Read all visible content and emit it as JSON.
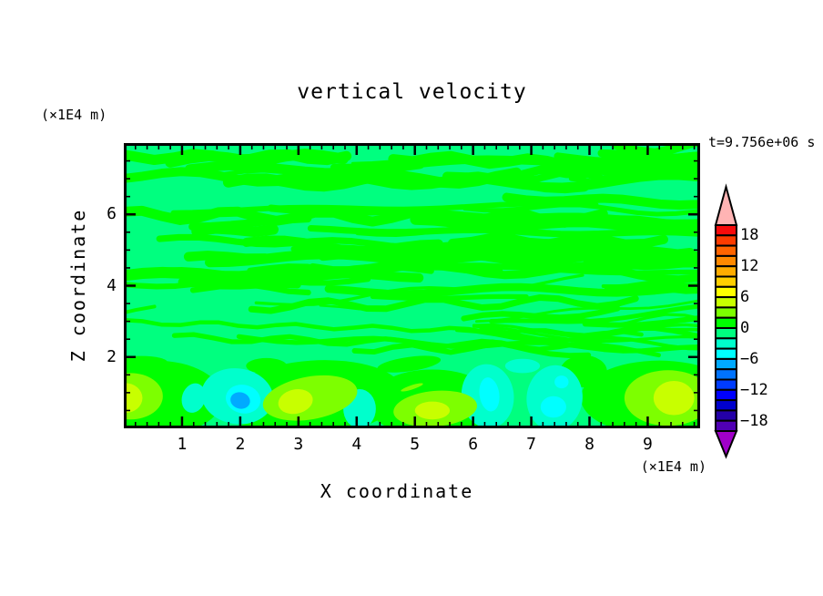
{
  "chart_data": {
    "type": "filled-contour",
    "title": "vertical velocity",
    "xlabel": "X coordinate",
    "ylabel": "Z coordinate",
    "x_unit": "(×1E4 m)",
    "y_unit": "(×1E4 m)",
    "timestamp": "t=9.756e+06 s",
    "xlim": [
      0,
      9.9
    ],
    "ylim": [
      0,
      8
    ],
    "x_major_ticks": [
      1,
      2,
      3,
      4,
      5,
      6,
      7,
      8,
      9
    ],
    "x_minor_step": 0.2,
    "y_major_ticks": [
      2,
      4,
      6
    ],
    "y_minor_step": 0.5,
    "grid": false,
    "colorbar": {
      "position": "right",
      "range": [
        -20,
        20
      ],
      "segment_span": 2,
      "labels": [
        "18",
        "12",
        "6",
        "0",
        "−6",
        "−12",
        "−18"
      ],
      "label_values": [
        18,
        12,
        6,
        0,
        -6,
        -12,
        -18
      ],
      "colors_top_to_bottom": [
        "#f80b0b",
        "#fd3b00",
        "#ff6400",
        "#ff8900",
        "#ffac00",
        "#ffcf00",
        "#ffff00",
        "#c8ff00",
        "#7dff00",
        "#00ff00",
        "#00ff7f",
        "#00ffcc",
        "#00ffff",
        "#00aaff",
        "#0073ff",
        "#003cff",
        "#0000ff",
        "#0000cd",
        "#2400a8",
        "#5000b4"
      ],
      "arrow_top_color": "#ffb4b4",
      "arrow_bottom_color": "#a000c8"
    },
    "field": {
      "description": "Mostly near-zero vertical velocity: wavy horizontal bands alternating between the -2..0 band (spring green) and 0..2 band (green) above z=2; convective cells below z=2 with updraft cores (+4..+6) and downdraft cores (-6..-8).",
      "background_color": "#00ff7f",
      "streak_color": "#00ff00",
      "palette": {
        "g": "#00ff00",
        "ch": "#7dff00",
        "yg": "#c8ff00",
        "tq": "#00ffcc",
        "cy": "#00ffff",
        "bl": "#00aaff"
      },
      "texture": {
        "seed": 987241,
        "count": 78,
        "z_min": 1.95,
        "z_max": 7.95
      },
      "features": [
        {
          "level": "g",
          "x": 0.55,
          "z": 0.85,
          "rx": 1.15,
          "rz": 1.05,
          "rot": 0
        },
        {
          "level": "g",
          "x": 3.25,
          "z": 0.85,
          "rx": 1.55,
          "rz": 1.05,
          "rot": -4
        },
        {
          "level": "g",
          "x": 5.3,
          "z": 0.7,
          "rx": 1.1,
          "rz": 0.95,
          "rot": 0
        },
        {
          "level": "g",
          "x": 9.2,
          "z": 0.85,
          "rx": 1.35,
          "rz": 1.05,
          "rot": 0
        },
        {
          "level": "g",
          "x": 2.45,
          "z": 1.75,
          "rx": 0.35,
          "rz": 0.22,
          "rot": 0
        },
        {
          "level": "g",
          "x": 4.9,
          "z": 1.8,
          "rx": 0.55,
          "rz": 0.2,
          "rot": -8
        },
        {
          "level": "g",
          "x": 7.9,
          "z": 1.6,
          "rx": 0.4,
          "rz": 0.45,
          "rot": 0
        },
        {
          "level": "g",
          "x": 0.3,
          "z": 1.85,
          "rx": 0.45,
          "rz": 0.18,
          "rot": 0
        },
        {
          "level": "tq",
          "x": 1.95,
          "z": 0.9,
          "rx": 0.62,
          "rz": 0.78,
          "rot": 8
        },
        {
          "level": "tq",
          "x": 1.2,
          "z": 0.85,
          "rx": 0.2,
          "rz": 0.42,
          "rot": 18
        },
        {
          "level": "tq",
          "x": 4.05,
          "z": 0.55,
          "rx": 0.28,
          "rz": 0.55,
          "rot": 0
        },
        {
          "level": "tq",
          "x": 6.25,
          "z": 0.9,
          "rx": 0.45,
          "rz": 0.9,
          "rot": -6
        },
        {
          "level": "tq",
          "x": 7.4,
          "z": 0.85,
          "rx": 0.48,
          "rz": 0.92,
          "rot": 6
        },
        {
          "level": "tq",
          "x": 6.85,
          "z": 1.75,
          "rx": 0.3,
          "rz": 0.2,
          "rot": 0
        },
        {
          "level": "cy",
          "x": 2.05,
          "z": 0.82,
          "rx": 0.3,
          "rz": 0.4,
          "rot": 12
        },
        {
          "level": "cy",
          "x": 6.28,
          "z": 0.95,
          "rx": 0.17,
          "rz": 0.48,
          "rot": -8
        },
        {
          "level": "cy",
          "x": 7.38,
          "z": 0.6,
          "rx": 0.22,
          "rz": 0.3,
          "rot": 0
        },
        {
          "level": "cy",
          "x": 7.52,
          "z": 1.3,
          "rx": 0.12,
          "rz": 0.18,
          "rot": 0
        },
        {
          "level": "bl",
          "x": 2.0,
          "z": 0.78,
          "rx": 0.17,
          "rz": 0.23,
          "rot": 15
        },
        {
          "level": "ch",
          "x": 0.12,
          "z": 0.9,
          "rx": 0.55,
          "rz": 0.65,
          "rot": 0
        },
        {
          "level": "ch",
          "x": 3.2,
          "z": 0.85,
          "rx": 0.82,
          "rz": 0.6,
          "rot": -10
        },
        {
          "level": "ch",
          "x": 5.35,
          "z": 0.55,
          "rx": 0.72,
          "rz": 0.5,
          "rot": -5
        },
        {
          "level": "ch",
          "x": 9.35,
          "z": 0.85,
          "rx": 0.75,
          "rz": 0.78,
          "rot": 0
        },
        {
          "level": "ch",
          "x": 4.95,
          "z": 1.15,
          "rx": 0.2,
          "rz": 0.06,
          "rot": -18
        },
        {
          "level": "yg",
          "x": 0.02,
          "z": 0.85,
          "rx": 0.3,
          "rz": 0.42,
          "rot": 0
        },
        {
          "level": "yg",
          "x": 2.95,
          "z": 0.75,
          "rx": 0.3,
          "rz": 0.34,
          "rot": -12
        },
        {
          "level": "yg",
          "x": 5.3,
          "z": 0.5,
          "rx": 0.3,
          "rz": 0.25,
          "rot": 0
        },
        {
          "level": "yg",
          "x": 9.45,
          "z": 0.85,
          "rx": 0.35,
          "rz": 0.48,
          "rot": 0
        }
      ]
    }
  }
}
